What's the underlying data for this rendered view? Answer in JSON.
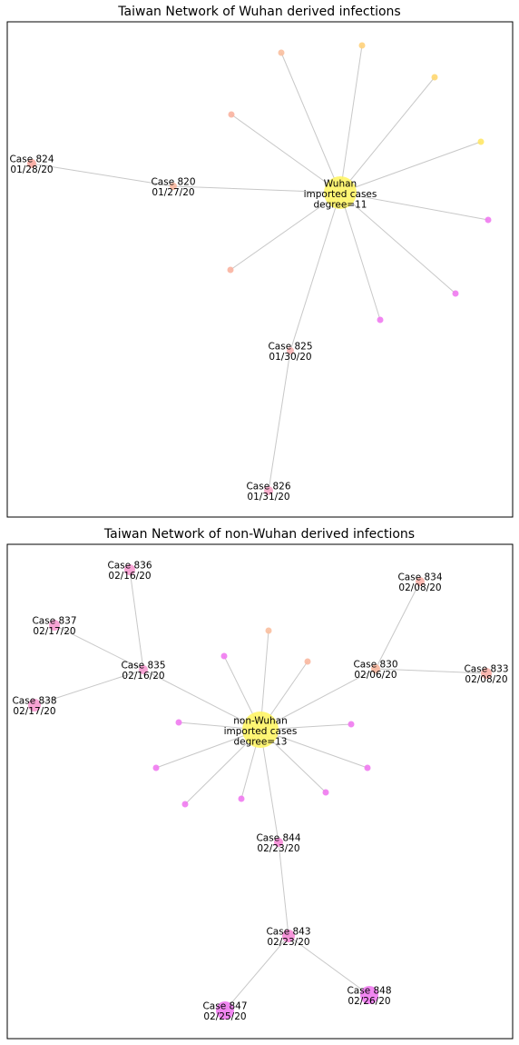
{
  "panels": [
    {
      "title": "Taiwan Network of Wuhan derived infections",
      "hub": {
        "label": [
          "Wuhan",
          "imported cases",
          "degree=11"
        ],
        "color": "#fff566"
      },
      "nodes": [
        {
          "id": "c824",
          "label": [
            "Case 824",
            "01/28/20"
          ],
          "color": "#f9a8a0"
        },
        {
          "id": "c820",
          "label": [
            "Case 820",
            "01/27/20"
          ],
          "color": "#f9b8a0"
        },
        {
          "id": "c825",
          "label": [
            "Case 825",
            "01/30/20"
          ],
          "color": "#f9b4b4"
        },
        {
          "id": "c826",
          "label": [
            "Case 826",
            "01/31/20"
          ],
          "color": "#f7a6c6"
        },
        {
          "id": "u1",
          "label": [],
          "color": "#f9bf9f"
        },
        {
          "id": "u2",
          "label": [],
          "color": "#ffd27a"
        },
        {
          "id": "u3",
          "label": [],
          "color": "#ffd770"
        },
        {
          "id": "u4",
          "label": [],
          "color": "#ffe766"
        },
        {
          "id": "u5",
          "label": [],
          "color": "#f9b2a0"
        },
        {
          "id": "u6",
          "label": [],
          "color": "#f9b2a0"
        },
        {
          "id": "u7",
          "label": [],
          "color": "#f07af0"
        },
        {
          "id": "u8",
          "label": [],
          "color": "#f07af0"
        },
        {
          "id": "u9",
          "label": [],
          "color": "#f07af0"
        }
      ]
    },
    {
      "title": "Taiwan Network of non-Wuhan derived infections",
      "hub": {
        "label": [
          "non-Wuhan",
          "imported cases",
          "degree=13"
        ],
        "color": "#fff566"
      },
      "nodes": [
        {
          "id": "c836",
          "label": [
            "Case 836",
            "02/16/20"
          ],
          "color": "#f79ad0"
        },
        {
          "id": "c837",
          "label": [
            "Case 837",
            "02/17/20"
          ],
          "color": "#f79ad0"
        },
        {
          "id": "c835",
          "label": [
            "Case 835",
            "02/16/20"
          ],
          "color": "#f79ad0"
        },
        {
          "id": "c838",
          "label": [
            "Case 838",
            "02/17/20"
          ],
          "color": "#f79ad0"
        },
        {
          "id": "c834",
          "label": [
            "Case 834",
            "02/08/20"
          ],
          "color": "#f9b0a8"
        },
        {
          "id": "c830",
          "label": [
            "Case 830",
            "02/06/20"
          ],
          "color": "#f9b8a0"
        },
        {
          "id": "c833",
          "label": [
            "Case 833",
            "02/08/20"
          ],
          "color": "#f9b0a8"
        },
        {
          "id": "c844",
          "label": [
            "Case 844",
            "02/23/20"
          ],
          "color": "#f58ad6"
        },
        {
          "id": "c843",
          "label": [
            "Case 843",
            "02/23/20"
          ],
          "color": "#f58ad6"
        },
        {
          "id": "c847",
          "label": [
            "Case 847",
            "02/25/20"
          ],
          "color": "#f07af0"
        },
        {
          "id": "c848",
          "label": [
            "Case 848",
            "02/26/20"
          ],
          "color": "#f07af0"
        },
        {
          "id": "n1",
          "label": [],
          "color": "#f9bf9f"
        },
        {
          "id": "n2",
          "label": [],
          "color": "#f9b8a0"
        },
        {
          "id": "n3",
          "label": [],
          "color": "#f07af0"
        },
        {
          "id": "n4",
          "label": [],
          "color": "#f07af0"
        },
        {
          "id": "n5",
          "label": [],
          "color": "#f07af0"
        },
        {
          "id": "n6",
          "label": [],
          "color": "#f07af0"
        },
        {
          "id": "n7",
          "label": [],
          "color": "#f07af0"
        },
        {
          "id": "n8",
          "label": [],
          "color": "#f07af0"
        },
        {
          "id": "n9",
          "label": [],
          "color": "#f07af0"
        },
        {
          "id": "n10",
          "label": [],
          "color": "#f07af0"
        }
      ]
    }
  ]
}
